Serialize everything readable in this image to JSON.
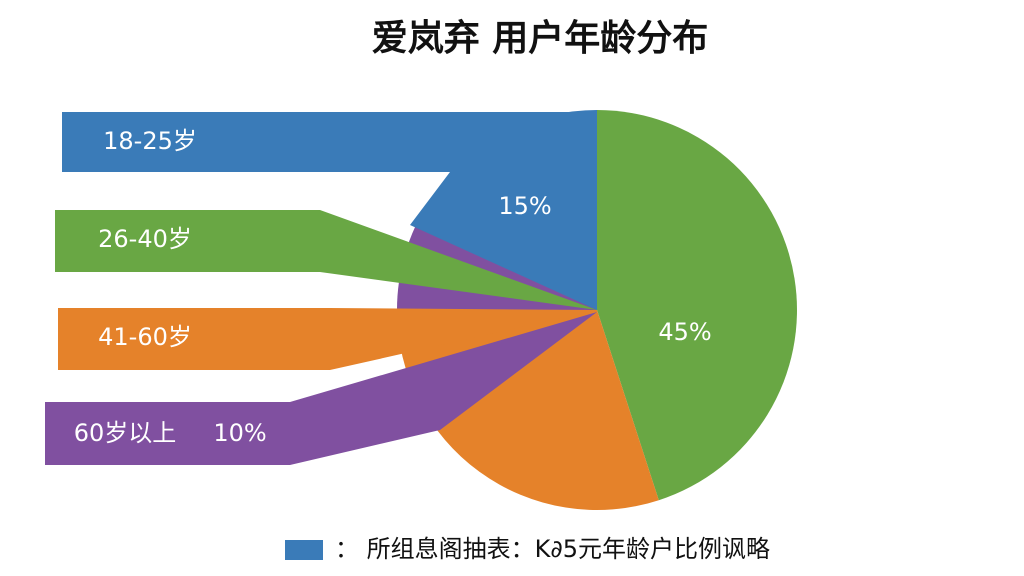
{
  "chart_data": {
    "type": "pie",
    "title": "爱岚弃  用户年龄分布",
    "categories": [
      "18-25岁",
      "26-40岁",
      "41-60岁",
      "60岁以上"
    ],
    "values": [
      15,
      45,
      30,
      10
    ],
    "value_labels": [
      "15%",
      "45%",
      null,
      "10%"
    ],
    "colors": [
      "#3a7bb8",
      "#69a744",
      "#e5822a",
      "#8050a0"
    ],
    "legend": {
      "color": "#3a7bb8",
      "text": "：  所组息阁抽表：K∂5元年龄户比例讽略"
    }
  }
}
